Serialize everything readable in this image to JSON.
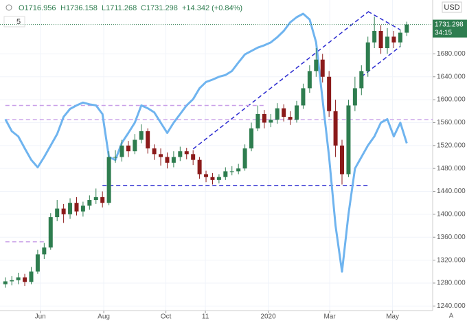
{
  "chart_data": {
    "type": "candlestick",
    "ohlc_header": [
      "O1716.956",
      "H1736.158",
      "L1711.268",
      "C1731.298",
      "+14.342 (+0.84%)"
    ],
    "interval": "5",
    "currency": "USD",
    "price_label": "1731.298",
    "countdown": "34:15",
    "up_color": "#2e7d4f",
    "down_color": "#8b1a1a",
    "open": [
      1278,
      1283,
      1285,
      1290,
      1282,
      1300,
      1330,
      1342,
      1395,
      1410,
      1400,
      1420,
      1405,
      1415,
      1425,
      1430,
      1420,
      1500,
      1500,
      1520,
      1510,
      1530,
      1545,
      1515,
      1505,
      1500,
      1490,
      1500,
      1510,
      1505,
      1495,
      1470,
      1465,
      1460,
      1465,
      1475,
      1475,
      1480,
      1515,
      1550,
      1575,
      1560,
      1565,
      1585,
      1570,
      1565,
      1590,
      1620,
      1650,
      1670,
      1640,
      1580,
      1520,
      1470,
      1590,
      1620,
      1650,
      1700,
      1720,
      1690,
      1710,
      1700,
      1716.956
    ],
    "high": [
      1290,
      1292,
      1298,
      1296,
      1308,
      1338,
      1350,
      1402,
      1425,
      1418,
      1428,
      1430,
      1422,
      1433,
      1445,
      1440,
      1510,
      1512,
      1530,
      1528,
      1540,
      1557,
      1550,
      1522,
      1515,
      1508,
      1510,
      1518,
      1516,
      1512,
      1500,
      1476,
      1472,
      1470,
      1482,
      1484,
      1488,
      1522,
      1560,
      1590,
      1582,
      1575,
      1594,
      1592,
      1580,
      1598,
      1628,
      1660,
      1690,
      1680,
      1650,
      1600,
      1530,
      1600,
      1640,
      1660,
      1710,
      1745,
      1730,
      1725,
      1720,
      1722,
      1736.158
    ],
    "low": [
      1272,
      1276,
      1278,
      1275,
      1278,
      1296,
      1322,
      1338,
      1388,
      1385,
      1392,
      1398,
      1396,
      1408,
      1418,
      1412,
      1416,
      1490,
      1492,
      1500,
      1505,
      1524,
      1506,
      1495,
      1485,
      1480,
      1482,
      1493,
      1496,
      1486,
      1462,
      1456,
      1452,
      1454,
      1460,
      1468,
      1470,
      1476,
      1510,
      1545,
      1550,
      1552,
      1558,
      1562,
      1556,
      1560,
      1584,
      1612,
      1640,
      1630,
      1570,
      1500,
      1452,
      1465,
      1580,
      1608,
      1640,
      1690,
      1680,
      1680,
      1690,
      1692,
      1711.268
    ],
    "close": [
      1283,
      1285,
      1290,
      1282,
      1300,
      1330,
      1342,
      1395,
      1410,
      1400,
      1420,
      1405,
      1415,
      1425,
      1430,
      1420,
      1500,
      1500,
      1520,
      1510,
      1530,
      1545,
      1515,
      1505,
      1500,
      1490,
      1500,
      1510,
      1505,
      1495,
      1470,
      1465,
      1460,
      1465,
      1475,
      1475,
      1480,
      1515,
      1550,
      1575,
      1560,
      1565,
      1585,
      1570,
      1565,
      1590,
      1620,
      1650,
      1670,
      1640,
      1580,
      1520,
      1470,
      1590,
      1620,
      1650,
      1700,
      1720,
      1690,
      1710,
      1700,
      1716.956,
      1731.298
    ],
    "overlay": {
      "color": "#6fb4ef",
      "values": [
        1566,
        1545,
        1536,
        1515,
        1495,
        1482,
        1500,
        1520,
        1540,
        1570,
        1584,
        1590,
        1595,
        1592,
        1590,
        1575,
        1500,
        1495,
        1525,
        1542,
        1560,
        1590,
        1585,
        1578,
        1560,
        1542,
        1560,
        1575,
        1590,
        1601,
        1620,
        1631,
        1635,
        1640,
        1643,
        1650,
        1665,
        1679,
        1685,
        1691,
        1695,
        1700,
        1709,
        1720,
        1735,
        1744,
        1750,
        1740,
        1700,
        1600,
        1500,
        1380,
        1300,
        1400,
        1480,
        1500,
        1520,
        1536,
        1560,
        1566,
        1536,
        1560,
        1524
      ]
    },
    "drawings": [
      {
        "color": "#2a2ad0",
        "points": [
          [
            15,
            1450
          ],
          [
            56,
            1450
          ]
        ]
      },
      {
        "color": "#2a2ad0",
        "points": [
          [
            29,
            1514
          ],
          [
            56,
            1753
          ]
        ]
      },
      {
        "color": "#2a2ad0",
        "points": [
          [
            55,
            1640
          ],
          [
            61,
            1693
          ]
        ]
      },
      {
        "color": "#2a2ad0",
        "points": [
          [
            56,
            1754
          ],
          [
            61,
            1722
          ]
        ]
      },
      {
        "color": "#c9a0e8",
        "points": [
          [
            0,
            1590
          ],
          [
            40,
            1590
          ]
        ]
      },
      {
        "color": "#c9a0e8",
        "points": [
          [
            0,
            1565
          ],
          [
            66,
            1565
          ]
        ]
      },
      {
        "color": "#c9a0e8",
        "points": [
          [
            0,
            1352
          ],
          [
            6,
            1352
          ]
        ]
      }
    ],
    "xlim": [
      -0.4,
      66
    ],
    "xticks": [
      {
        "value": 5.4,
        "label": "Jun"
      },
      {
        "value": 15.2,
        "label": "Aug"
      },
      {
        "value": 24.8,
        "label": "Oct"
      },
      {
        "value": 30.9,
        "label": "11"
      },
      {
        "value": 40.6,
        "label": "2020"
      },
      {
        "value": 50.1,
        "label": "Mar"
      },
      {
        "value": 59.8,
        "label": "May"
      }
    ],
    "ylim": [
      1232,
      1774
    ],
    "yticks": [
      {
        "value": 1240,
        "label": "1240.000"
      },
      {
        "value": 1280,
        "label": "1280.000"
      },
      {
        "value": 1320,
        "label": "1320.000"
      },
      {
        "value": 1360,
        "label": "1360.000"
      },
      {
        "value": 1400,
        "label": "1400.000"
      },
      {
        "value": 1440,
        "label": "1440.000"
      },
      {
        "value": 1480,
        "label": "1480.000"
      },
      {
        "value": 1520,
        "label": "1520.000"
      },
      {
        "value": 1560,
        "label": "1560.000"
      },
      {
        "value": 1600,
        "label": "1600.000"
      },
      {
        "value": 1640,
        "label": "1640.000"
      },
      {
        "value": 1680,
        "label": "1680.000"
      }
    ]
  }
}
